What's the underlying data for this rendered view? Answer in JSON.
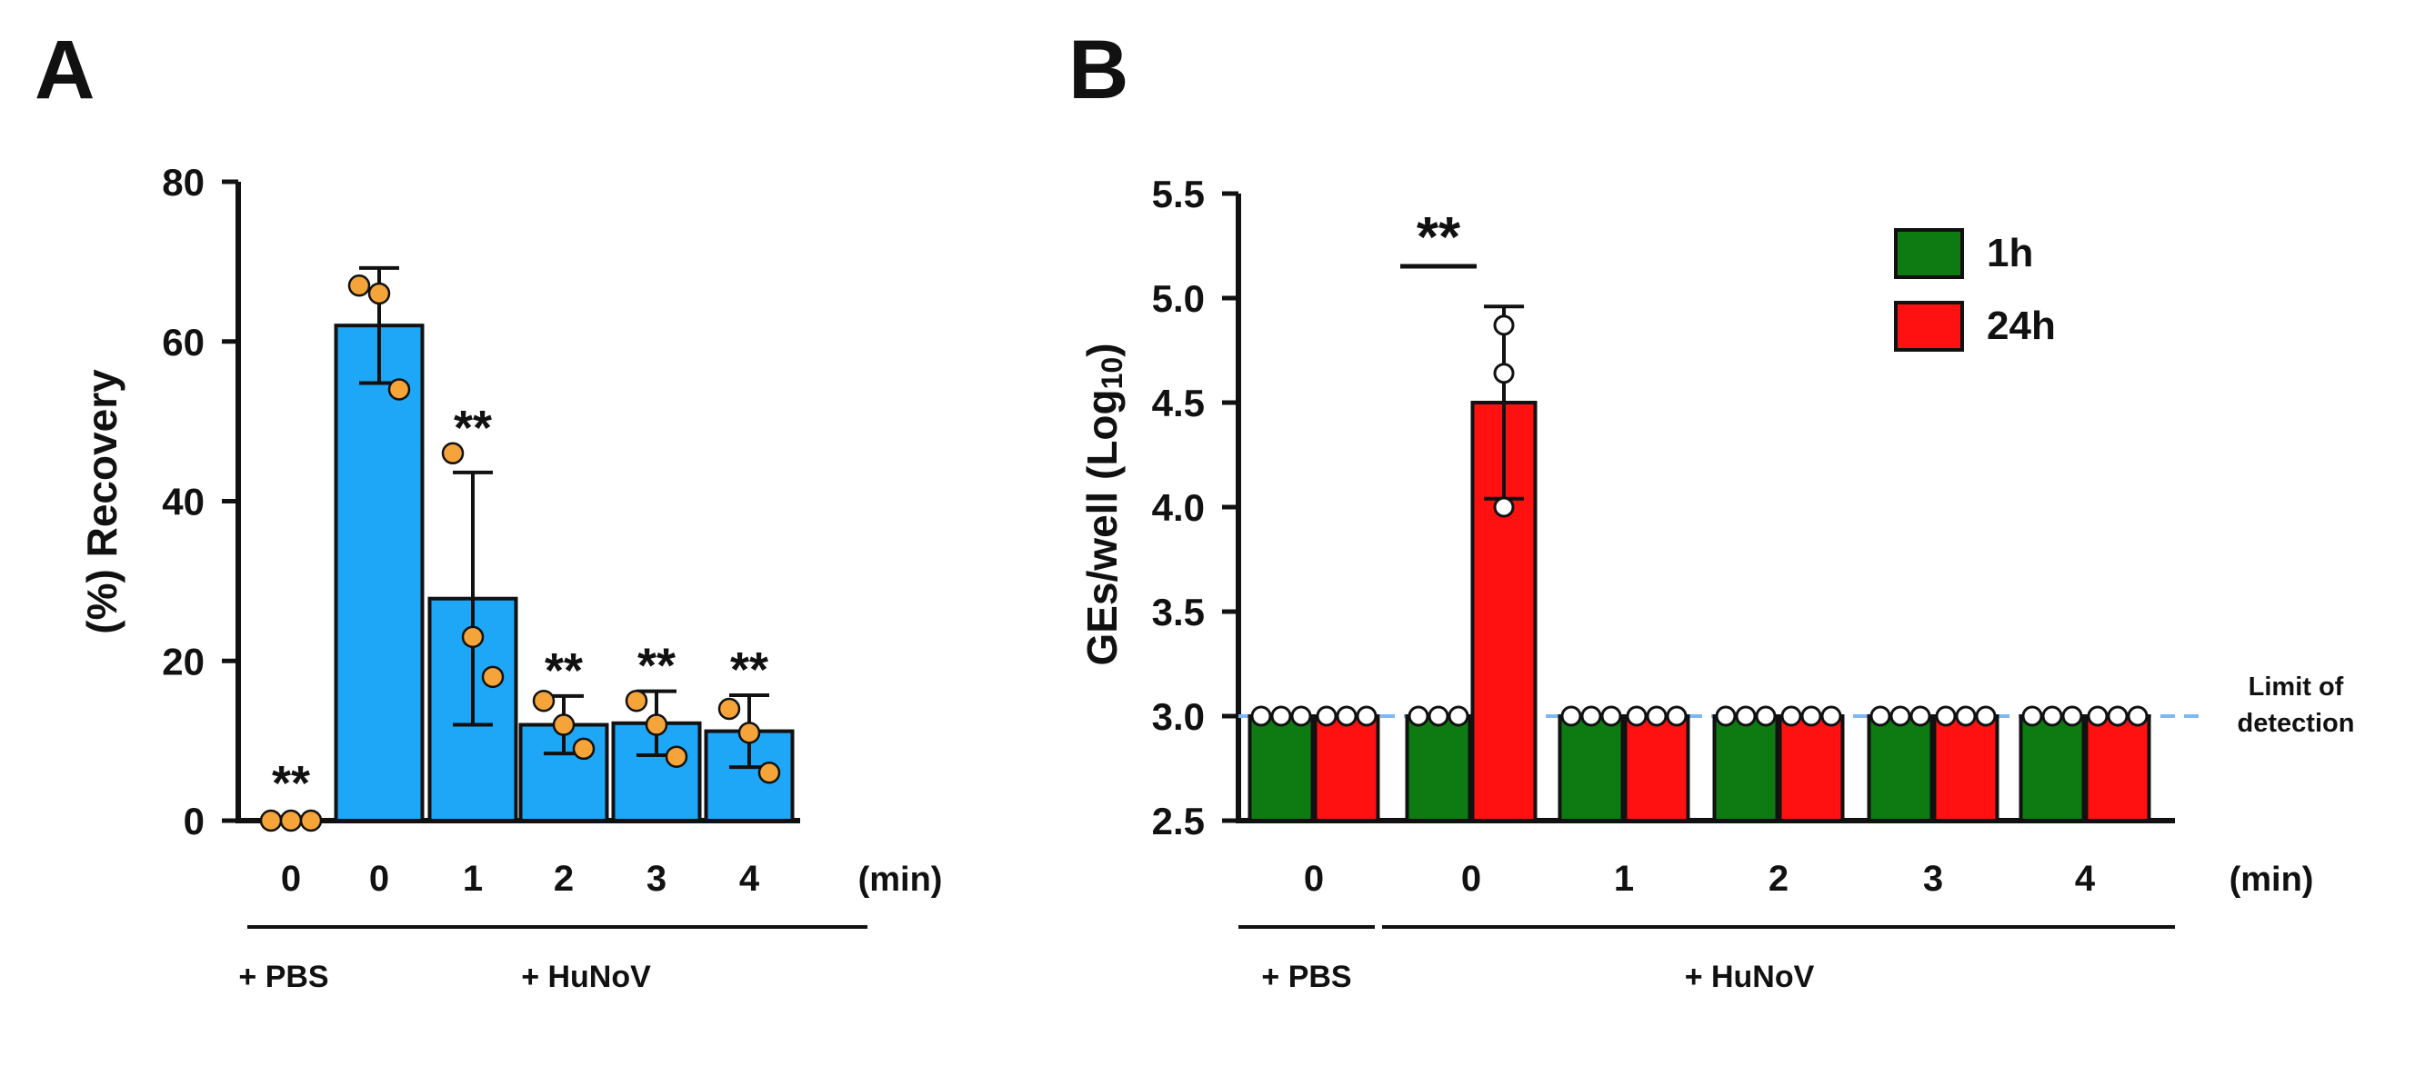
{
  "colors": {
    "blue_bar": "#1EA6F7",
    "orange_dot": "#F5A43A",
    "green_bar": "#0E7A12",
    "red_bar": "#FF1111",
    "lod_line": "#7FB8F0",
    "ink": "#111111"
  },
  "chart_data": [
    {
      "panel": "A",
      "type": "bar",
      "ylabel": "(%) Recovery",
      "ylim": [
        0,
        80
      ],
      "yticks": [
        "0",
        "20",
        "40",
        "60",
        "80"
      ],
      "unit_label": "(min)",
      "categories": [
        "0",
        "0",
        "1",
        "2",
        "3",
        "4"
      ],
      "values": [
        0,
        62,
        27.8,
        12,
        12.2,
        11.2
      ],
      "error": [
        0,
        7.2,
        15.8,
        3.6,
        4,
        4.5
      ],
      "points": [
        [
          0,
          0,
          0
        ],
        [
          67,
          66,
          54
        ],
        [
          46,
          23,
          18
        ],
        [
          15,
          12,
          9
        ],
        [
          15,
          12,
          8
        ],
        [
          14,
          11,
          6
        ]
      ],
      "significance": [
        "**",
        "",
        "**",
        "**",
        "**",
        "**"
      ],
      "groups": [
        {
          "label": "+ PBS",
          "from": 0,
          "to": 0
        },
        {
          "label": "+ HuNoV",
          "from": 1,
          "to": 5
        }
      ]
    },
    {
      "panel": "B",
      "type": "bar",
      "ylabel_main": "GEs/well (Log",
      "ylabel_sub": "10",
      "ylabel_close": ")",
      "ylim": [
        2.5,
        5.5
      ],
      "yticks": [
        "2.5",
        "3.0",
        "3.5",
        "4.0",
        "4.5",
        "5.0",
        "5.5"
      ],
      "unit_label": "(min)",
      "categories": [
        "0",
        "0",
        "1",
        "2",
        "3",
        "4"
      ],
      "series": [
        {
          "name": "1h",
          "values": [
            3,
            3,
            3,
            3,
            3,
            3
          ]
        },
        {
          "name": "24h",
          "values": [
            3,
            4.5,
            3,
            3,
            3,
            3
          ],
          "error": [
            0,
            0.46,
            0,
            0,
            0,
            0
          ],
          "points_bar1": [
            4.87,
            4.64,
            4.0
          ]
        }
      ],
      "significance": {
        "label": "**",
        "category": 1
      },
      "lod_value": 3.0,
      "lod_label_1": "Limit of",
      "lod_label_2": "detection",
      "groups": [
        {
          "label": "+ PBS",
          "from": 0,
          "to": 0
        },
        {
          "label": "+ HuNoV",
          "from": 1,
          "to": 5
        }
      ]
    }
  ]
}
